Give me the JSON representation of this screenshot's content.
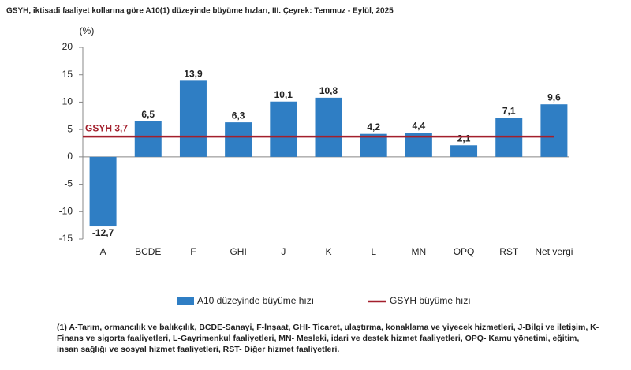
{
  "chart_data": {
    "type": "bar",
    "title": "GSYH, iktisadi faaliyet kollarına göre A10(1) düzeyinde büyüme hızları, III. Çeyrek: Temmuz - Eylül, 2025",
    "y_unit": "(%)",
    "categories": [
      "A",
      "BCDE",
      "F",
      "GHI",
      "J",
      "K",
      "L",
      "MN",
      "OPQ",
      "RST",
      "Net vergi"
    ],
    "series": [
      {
        "name": "A10 düzeyinde büyüme hızı",
        "color": "#2f7ec4",
        "values": [
          -12.7,
          6.5,
          13.9,
          6.3,
          10.1,
          10.8,
          4.2,
          4.4,
          2.1,
          7.1,
          9.6
        ],
        "value_labels": [
          "-12,7",
          "6,5",
          "13,9",
          "6,3",
          "10,1",
          "10,8",
          "4,2",
          "4,4",
          "2,1",
          "7,1",
          "9,6"
        ]
      }
    ],
    "reference_line": {
      "name": "GSYH büyüme hızı",
      "value": 3.7,
      "label": "GSYH 3,7",
      "color": "#a31f2c"
    },
    "ylim": [
      -15,
      20
    ],
    "yticks": [
      -15,
      -10,
      -5,
      0,
      5,
      10,
      15,
      20
    ],
    "grid": false,
    "footnote": "(1) A-Tarım, ormancılık ve balıkçılık, BCDE-Sanayi, F-İnşaat, GHI- Ticaret, ulaştırma, konaklama ve yiyecek hizmetleri, J-Bilgi ve iletişim, K-Finans ve sigorta faaliyetleri, L-Gayrimenkul faaliyetleri, MN- Mesleki, idari ve destek hizmet faaliyetleri, OPQ- Kamu yönetimi, eğitim, insan sağlığı ve sosyal hizmet faaliyetleri, RST- Diğer hizmet faaliyetleri."
  }
}
